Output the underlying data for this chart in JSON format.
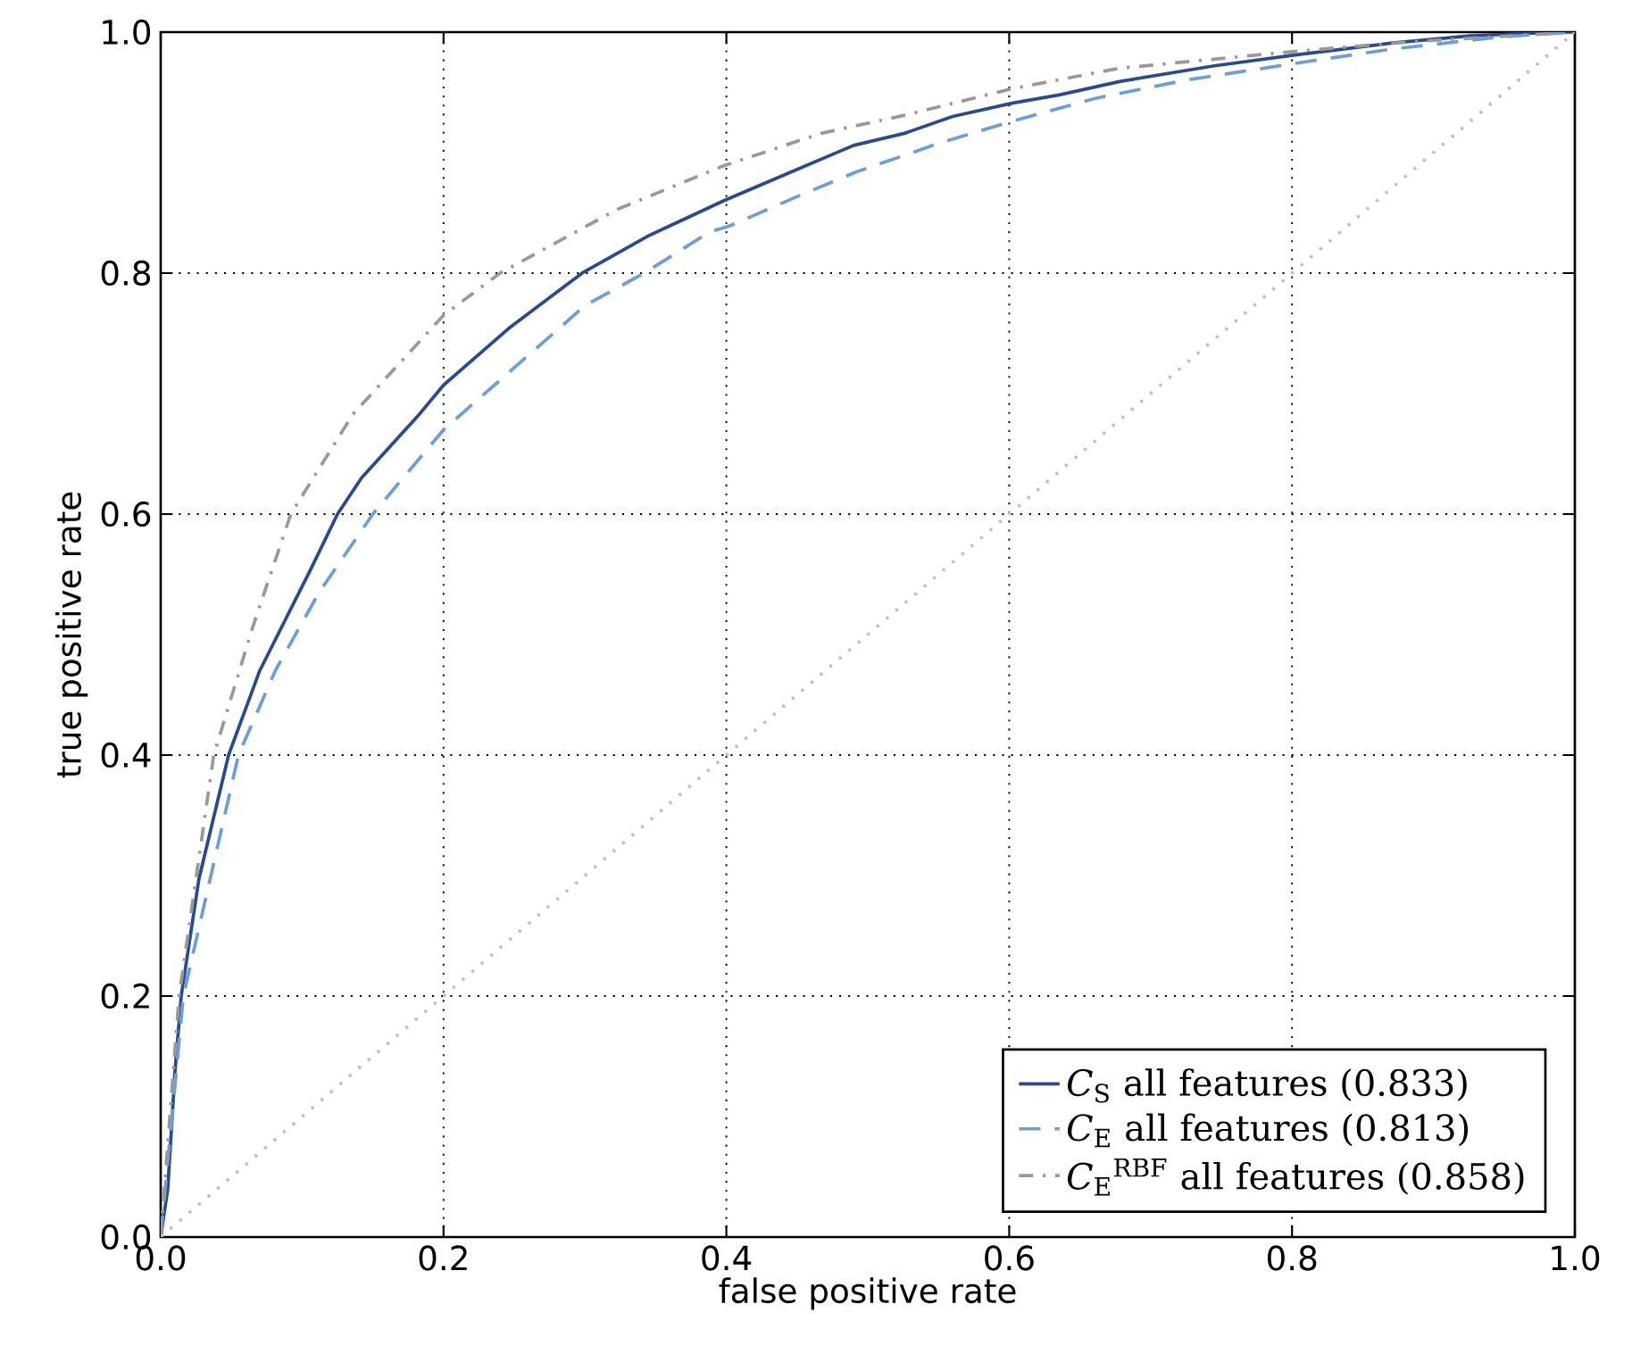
{
  "chart_data": {
    "type": "line",
    "xlabel": "false positive rate",
    "ylabel": "true positive rate",
    "xlim": [
      0,
      1
    ],
    "ylim": [
      0,
      1
    ],
    "xticks": [
      {
        "value": 0,
        "label": "0.0"
      },
      {
        "value": 0.2,
        "label": "0.2"
      },
      {
        "value": 0.4,
        "label": "0.4"
      },
      {
        "value": 0.6,
        "label": "0.6"
      },
      {
        "value": 0.8,
        "label": "0.8"
      },
      {
        "value": 1,
        "label": "1.0"
      }
    ],
    "yticks": [
      {
        "value": 0,
        "label": "0.0"
      },
      {
        "value": 0.2,
        "label": "0.2"
      },
      {
        "value": 0.4,
        "label": "0.4"
      },
      {
        "value": 0.6,
        "label": "0.6"
      },
      {
        "value": 0.8,
        "label": "0.8"
      },
      {
        "value": 1,
        "label": "1.0"
      }
    ],
    "grid": true,
    "legend": "bottom right",
    "series": [
      {
        "name": "*C*$_{S}$ all features (0.833)",
        "color": "#274a93",
        "line_style": "solid",
        "x": [
          0,
          0.005,
          0.01,
          0.0145,
          0.027,
          0.048,
          0.07,
          0.106,
          0.125,
          0.142,
          0.183,
          0.2,
          0.246,
          0.298,
          0.345,
          0.398,
          0.442,
          0.49,
          0.526,
          0.56,
          0.602,
          0.636,
          0.678,
          0.745,
          0.802,
          0.871,
          0.926,
          0.989,
          1
        ],
        "values": [
          0,
          0.04,
          0.136,
          0.2,
          0.297,
          0.4,
          0.47,
          0.554,
          0.6,
          0.63,
          0.683,
          0.707,
          0.754,
          0.8,
          0.831,
          0.86,
          0.882,
          0.906,
          0.916,
          0.93,
          0.941,
          0.948,
          0.959,
          0.972,
          0.981,
          0.991,
          0.997,
          1,
          1
        ]
      },
      {
        "name": "*C*$_{E}$ all features (0.813)",
        "color": "#6a9fd8",
        "line_style": "dashed",
        "x": [
          0,
          0.016,
          0.055,
          0.081,
          0.112,
          0.15,
          0.2,
          0.3,
          0.342,
          0.388,
          0.402,
          0.455,
          0.492,
          0.551,
          0.602,
          0.661,
          0.724,
          0.802,
          0.871,
          0.947,
          1
        ],
        "values": [
          0,
          0.2,
          0.4,
          0.47,
          0.535,
          0.6,
          0.67,
          0.773,
          0.8,
          0.834,
          0.839,
          0.866,
          0.884,
          0.908,
          0.926,
          0.945,
          0.96,
          0.974,
          0.986,
          0.996,
          1
        ]
      },
      {
        "name": "*C*$_{E}$$^{RBF}$ all features (0.858)",
        "color": "#999999",
        "line_style": "dashdot",
        "x": [
          0,
          0.013,
          0.0375,
          0.065,
          0.092,
          0.136,
          0.2,
          0.24,
          0.323,
          0.398,
          0.467,
          0.526,
          0.602,
          0.678,
          0.802,
          0.884,
          1
        ],
        "values": [
          0,
          0.2,
          0.4,
          0.506,
          0.6,
          0.683,
          0.765,
          0.8,
          0.853,
          0.889,
          0.916,
          0.931,
          0.953,
          0.97,
          0.984,
          0.992,
          1
        ]
      },
      {
        "color": "#c0c0c0",
        "line_style": "dotted",
        "x": [
          0,
          1
        ],
        "values": [
          0,
          1
        ]
      }
    ]
  }
}
